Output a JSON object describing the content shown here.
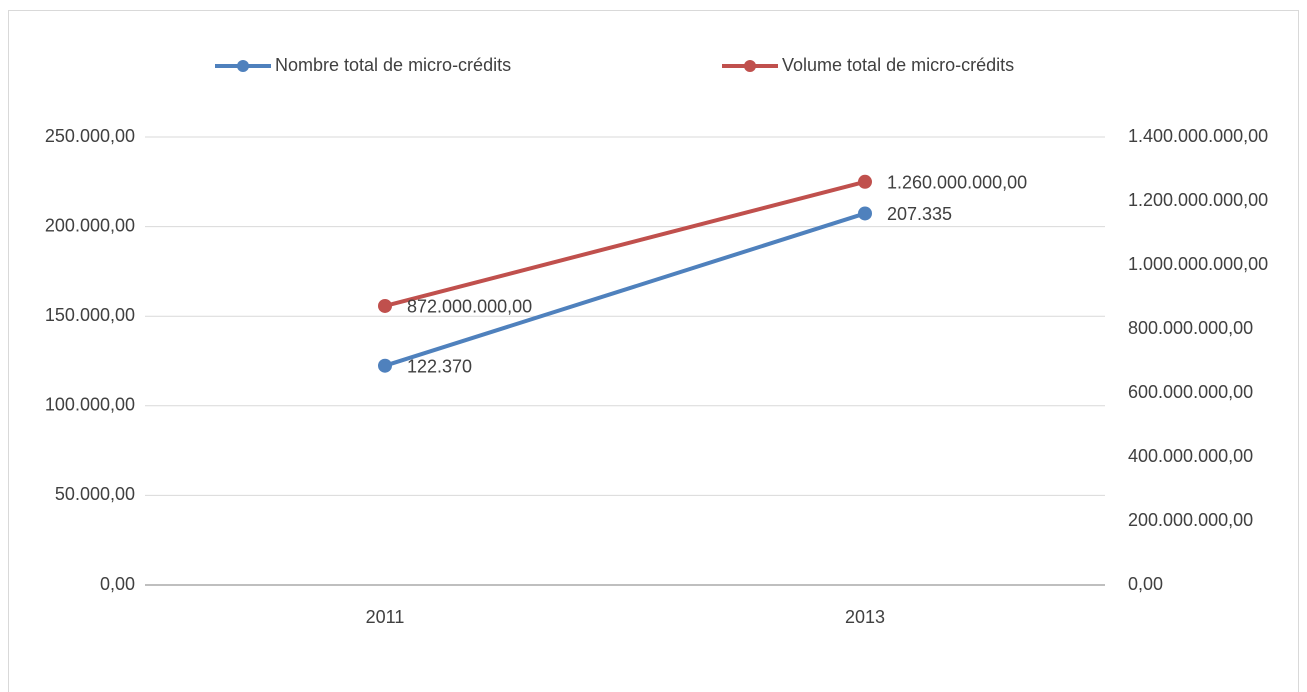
{
  "chart_data": {
    "type": "line",
    "categories": [
      "2011",
      "2013"
    ],
    "series": [
      {
        "name": "Nombre total de micro-crédits",
        "color": "#4f81bd",
        "values": [
          122370,
          207335
        ],
        "value_labels": [
          "122.370",
          "207.335"
        ]
      },
      {
        "name": "Volume total de micro-crédits",
        "color": "#c0504d",
        "axis": "y2",
        "values": [
          872000000,
          1260000000
        ],
        "value_labels": [
          "872.000.000,00",
          "1.260.000.000,00"
        ]
      }
    ],
    "ylim": [
      0,
      250000
    ],
    "yticks": [
      {
        "value": 0,
        "label": "0,00"
      },
      {
        "value": 50000,
        "label": "50.000,00"
      },
      {
        "value": 100000,
        "label": "100.000,00"
      },
      {
        "value": 150000,
        "label": "150.000,00"
      },
      {
        "value": 200000,
        "label": "200.000,00"
      },
      {
        "value": 250000,
        "label": "250.000,00"
      }
    ],
    "y2lim": [
      0,
      1400000000
    ],
    "y2ticks": [
      {
        "value": 0,
        "label": "0,00"
      },
      {
        "value": 200000000,
        "label": "200.000.000,00"
      },
      {
        "value": 400000000,
        "label": "400.000.000,00"
      },
      {
        "value": 600000000,
        "label": "600.000.000,00"
      },
      {
        "value": 800000000,
        "label": "800.000.000,00"
      },
      {
        "value": 1000000000,
        "label": "1.000.000.000,00"
      },
      {
        "value": 1200000000,
        "label": "1.200.000.000,00"
      },
      {
        "value": 1400000000,
        "label": "1.400.000.000,00"
      }
    ],
    "grid": true,
    "legend": "top"
  }
}
